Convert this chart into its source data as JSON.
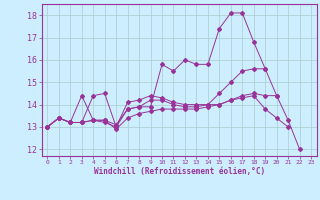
{
  "xlabel": "Windchill (Refroidissement éolien,°C)",
  "background_color": "#cceeff",
  "grid_color": "#aacccc",
  "line_color": "#993399",
  "x_ticks": [
    0,
    1,
    2,
    3,
    4,
    5,
    6,
    7,
    8,
    9,
    10,
    11,
    12,
    13,
    14,
    15,
    16,
    17,
    18,
    19,
    20,
    21,
    22,
    23
  ],
  "y_ticks": [
    12,
    13,
    14,
    15,
    16,
    17,
    18
  ],
  "ylim": [
    11.7,
    18.5
  ],
  "xlim": [
    -0.5,
    23.5
  ],
  "series": [
    [
      13.0,
      13.4,
      13.2,
      14.4,
      13.3,
      13.2,
      13.0,
      13.8,
      13.9,
      13.9,
      15.8,
      15.5,
      16.0,
      15.8,
      15.8,
      17.4,
      18.1,
      18.1,
      16.8,
      15.6,
      14.4,
      13.3,
      12.0,
      null
    ],
    [
      13.0,
      13.4,
      13.2,
      13.2,
      13.3,
      13.3,
      13.1,
      13.8,
      13.9,
      14.2,
      14.2,
      14.0,
      13.9,
      13.9,
      14.0,
      14.5,
      15.0,
      15.5,
      15.6,
      15.6,
      null,
      null,
      null,
      null
    ],
    [
      13.0,
      13.4,
      13.2,
      13.2,
      13.3,
      13.3,
      12.9,
      13.4,
      13.6,
      13.7,
      13.8,
      13.8,
      13.8,
      13.8,
      13.9,
      14.0,
      14.2,
      14.3,
      14.4,
      13.8,
      13.4,
      13.0,
      null,
      null
    ],
    [
      13.0,
      13.4,
      13.2,
      13.2,
      14.4,
      14.5,
      13.0,
      14.1,
      14.2,
      14.4,
      14.3,
      14.1,
      14.0,
      14.0,
      14.0,
      14.0,
      14.2,
      14.4,
      14.5,
      14.4,
      14.4,
      null,
      null,
      null
    ]
  ]
}
